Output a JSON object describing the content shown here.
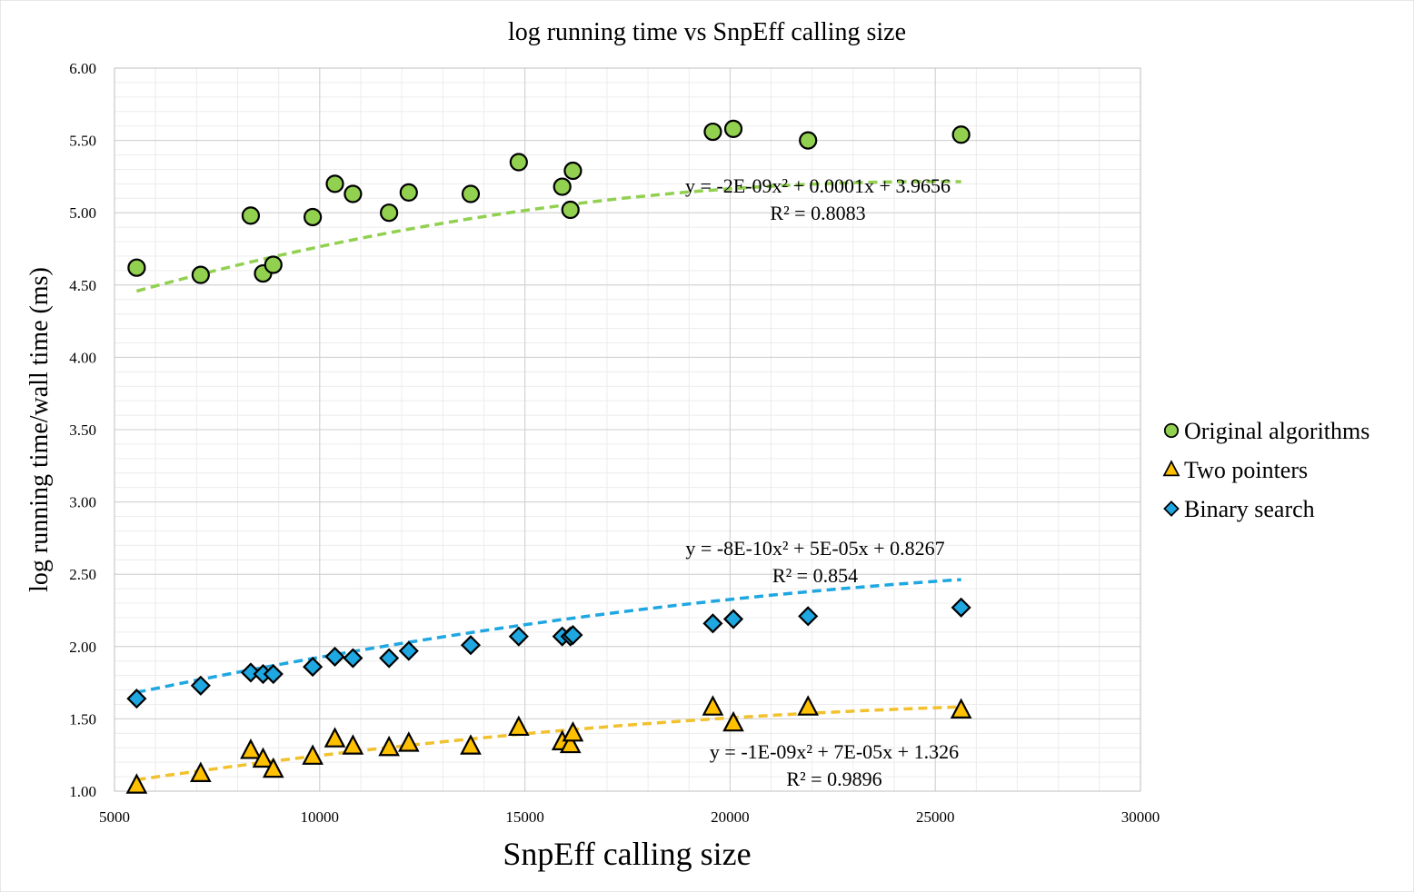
{
  "chart_data": {
    "type": "scatter",
    "title": "log running time vs SnpEff calling size",
    "xlabel": "SnpEff calling size",
    "ylabel": "log running time/wall time (ms)",
    "xlim": [
      5000,
      30000
    ],
    "ylim": [
      1.0,
      6.0
    ],
    "x_ticks": [
      "5000",
      "10000",
      "15000",
      "20000",
      "25000",
      "30000"
    ],
    "y_ticks": [
      "1.00",
      "1.50",
      "2.00",
      "2.50",
      "3.00",
      "3.50",
      "4.00",
      "4.50",
      "5.00",
      "5.50",
      "6.00"
    ],
    "x_tick_values": [
      5000,
      10000,
      15000,
      20000,
      25000,
      30000
    ],
    "y_tick_values": [
      1.0,
      1.5,
      2.0,
      2.5,
      3.0,
      3.5,
      4.0,
      4.5,
      5.0,
      5.5,
      6.0
    ],
    "grid": true,
    "legend_position": "right",
    "series": [
      {
        "name": "Original algorithms",
        "marker": "circle",
        "color": "#92D050",
        "trend_color": "#92D050",
        "x": [
          5540,
          7100,
          8320,
          8620,
          8870,
          9830,
          10370,
          10810,
          11690,
          12170,
          13680,
          14850,
          15910,
          16110,
          16170,
          19580,
          20080,
          21900,
          25630
        ],
        "y": [
          4.62,
          4.57,
          4.98,
          4.58,
          4.64,
          4.97,
          5.2,
          5.13,
          5.0,
          5.14,
          5.13,
          5.35,
          5.18,
          5.02,
          5.29,
          5.56,
          5.58,
          5.5,
          5.54
        ],
        "trendline": {
          "a": -2e-09,
          "b": 0.0001,
          "c": 3.9656
        },
        "equation": "y = -2E-09x² + 0.0001x + 3.9656",
        "r2": "R² = 0.8083"
      },
      {
        "name": "Two pointers",
        "marker": "triangle",
        "color": "#FFC000",
        "trend_color": "#F2C12E",
        "x": [
          5540,
          7100,
          8320,
          8620,
          8870,
          9830,
          10370,
          10810,
          11690,
          12170,
          13680,
          14850,
          15910,
          16110,
          16170,
          19580,
          20080,
          21900,
          25630
        ],
        "y": [
          1.04,
          1.12,
          1.28,
          1.22,
          1.15,
          1.24,
          1.36,
          1.31,
          1.3,
          1.33,
          1.31,
          1.44,
          1.34,
          1.32,
          1.4,
          1.58,
          1.47,
          1.58,
          1.56
        ],
        "trendline": {
          "a": -8e-10,
          "b": 5e-05,
          "c": 0.8267
        },
        "equation": "y = -8E-10x² + 5E-05x + 0.8267",
        "r2": "R² = 0.854"
      },
      {
        "name": "Binary search",
        "marker": "diamond",
        "color": "#1EA7E1",
        "trend_color": "#1EA7E1",
        "x": [
          5540,
          7100,
          8320,
          8620,
          8870,
          9830,
          10370,
          10810,
          11690,
          12170,
          13680,
          14850,
          15910,
          16110,
          16170,
          19580,
          20080,
          21900,
          25630
        ],
        "y": [
          1.64,
          1.73,
          1.82,
          1.81,
          1.81,
          1.86,
          1.93,
          1.92,
          1.92,
          1.97,
          2.01,
          2.07,
          2.07,
          2.07,
          2.08,
          2.16,
          2.19,
          2.21,
          2.27
        ],
        "trendline": {
          "a": -1e-09,
          "b": 7e-05,
          "c": 1.326
        },
        "equation": "y = -1E-09x² + 7E-05x + 1.326",
        "r2": "R² = 0.9896"
      }
    ]
  }
}
